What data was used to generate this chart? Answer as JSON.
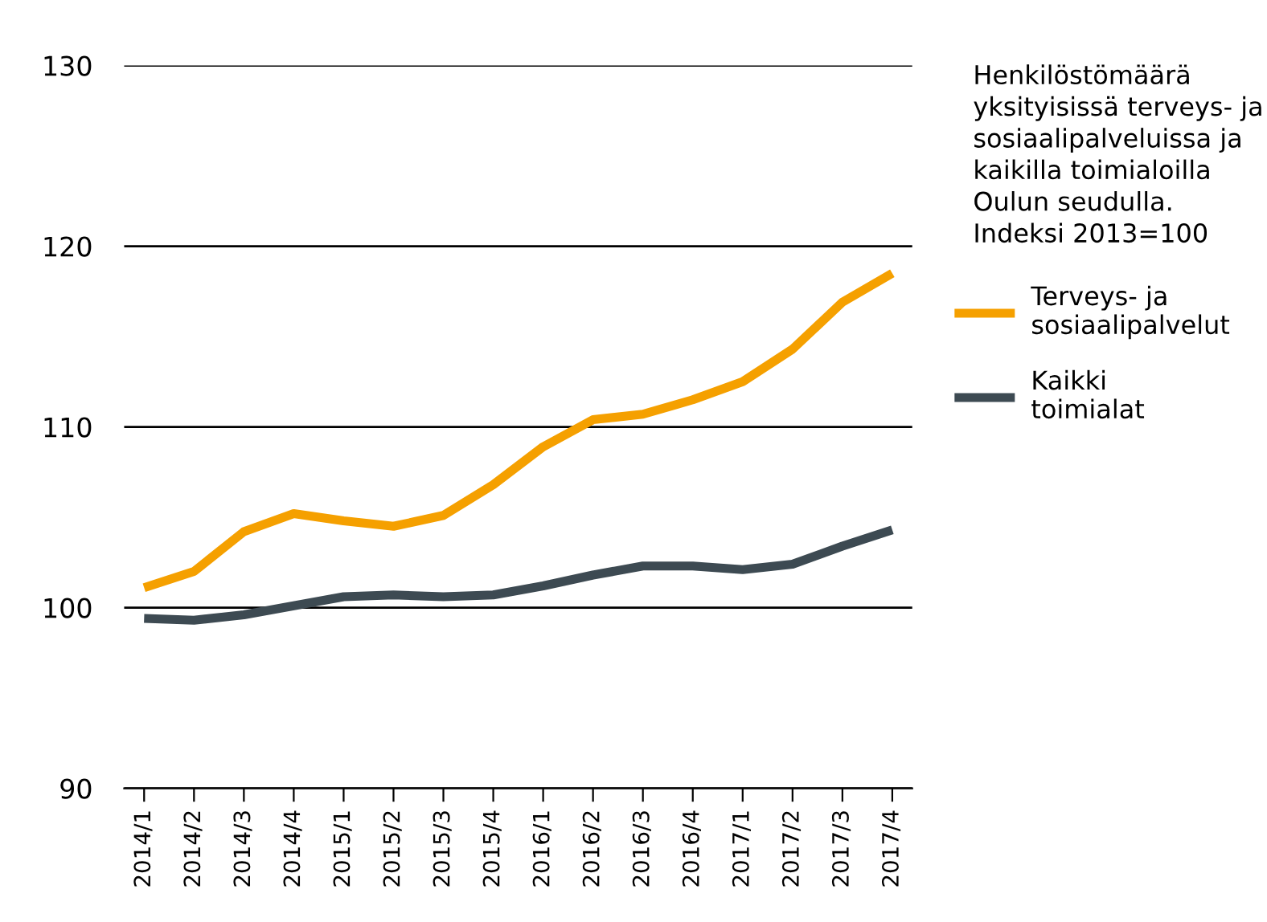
{
  "chart_data": {
    "type": "line",
    "title": "Henkilöstömäärä\nyksityisissä terveys- ja\nsosiaalipalveluissa ja\nkaikilla toimialoilla\nOulun seudulla.\nIndeksi 2013=100",
    "categories": [
      "2014/1",
      "2014/2",
      "2014/3",
      "2014/4",
      "2015/1",
      "2015/2",
      "2015/3",
      "2015/4",
      "2016/1",
      "2016/2",
      "2016/3",
      "2016/4",
      "2017/1",
      "2017/2",
      "2017/3",
      "2017/4"
    ],
    "series": [
      {
        "name": "Terveys- ja\nsosiaalipalvelut",
        "color": "#f5a000",
        "values": [
          101.1,
          102.0,
          104.2,
          105.2,
          104.8,
          104.5,
          105.1,
          106.8,
          108.9,
          110.4,
          110.7,
          111.5,
          112.5,
          114.3,
          116.9,
          118.5
        ]
      },
      {
        "name": "Kaikki\ntoimialat",
        "color": "#3d4a52",
        "values": [
          99.4,
          99.3,
          99.6,
          100.1,
          100.6,
          100.7,
          100.6,
          100.7,
          101.2,
          101.8,
          102.3,
          102.3,
          102.1,
          102.4,
          103.4,
          104.3
        ]
      }
    ],
    "ylim": [
      90,
      130
    ],
    "yticks": [
      90,
      100,
      110,
      120,
      130
    ],
    "grid": "y",
    "legend": "right",
    "marker": "none",
    "line_style": "solid"
  }
}
